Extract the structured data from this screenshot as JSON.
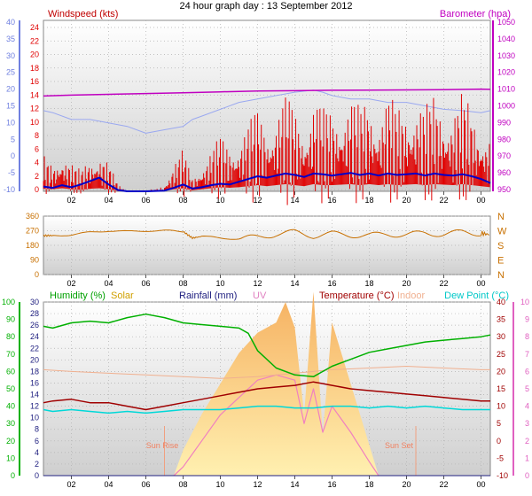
{
  "title": "24 hour graph day : 13 September 2012",
  "x_ticks": [
    "02",
    "04",
    "06",
    "08",
    "10",
    "12",
    "14",
    "16",
    "18",
    "20",
    "22",
    "00"
  ],
  "colors": {
    "windspeed": "#e00000",
    "wind_avg": "#0000c8",
    "wind_gust_avg": "#9aa8f0",
    "barometer": "#c000c0",
    "direction": "#c87000",
    "humidity": "#00b000",
    "solar": "#f0b000",
    "rainfall": "#202080",
    "uv": "#f080c0",
    "temperature": "#a00000",
    "indoor": "#f0b090",
    "dew_point": "#00d8d8",
    "left_axis_blue": "#7080e0",
    "left_axis_green": "#00b000",
    "right_axis_pink": "#e060c0"
  },
  "panels": {
    "wind": {
      "label_left": "Windspeed (kts)",
      "label_right": "Barometer (hpa)",
      "left_ticks_kts": [
        "24",
        "22",
        "20",
        "18",
        "16",
        "14",
        "12",
        "10",
        "8",
        "6",
        "4",
        "2",
        "0"
      ],
      "left_ticks_alt": [
        "40",
        "35",
        "30",
        "25",
        "20",
        "15",
        "10",
        "5",
        "0",
        "-5",
        "-10"
      ],
      "right_ticks": [
        "1050",
        "1040",
        "1030",
        "1020",
        "1010",
        "1000",
        "990",
        "980",
        "970",
        "960",
        "950"
      ]
    },
    "direction": {
      "left_ticks": [
        "360",
        "270",
        "180",
        "90",
        "0"
      ],
      "compass": [
        "N",
        "W",
        "S",
        "E",
        "N"
      ]
    },
    "weather": {
      "label_humidity": "Humidity (%)",
      "label_solar": "Solar",
      "label_rainfall": "Rainfall (mm)",
      "label_uv": "UV",
      "label_temperature": "Temperature (°C)",
      "label_indoor": "Indoor",
      "label_dewpoint": "Dew Point (°C)",
      "humidity_ticks": [
        "100",
        "90",
        "80",
        "70",
        "60",
        "50",
        "40",
        "30",
        "20",
        "10",
        "0"
      ],
      "rain_ticks": [
        "30",
        "28",
        "26",
        "24",
        "22",
        "20",
        "18",
        "16",
        "14",
        "12",
        "10",
        "8",
        "6",
        "4",
        "2",
        "0"
      ],
      "temp_ticks": [
        "40",
        "35",
        "30",
        "25",
        "20",
        "15",
        "10",
        "5",
        "0",
        "-5",
        "-10"
      ],
      "uv_ticks": [
        "10",
        "9",
        "8",
        "7",
        "6",
        "5",
        "4",
        "3",
        "2",
        "1",
        "0"
      ],
      "sunrise": "Sun Rise",
      "sunset": "Sun Set"
    }
  },
  "chart_data": [
    {
      "type": "line",
      "title": "24 hour graph day : 13 September 2012",
      "x_unit": "hour",
      "xlim": [
        0.5,
        24.5
      ],
      "ylabel": "Windspeed (kts)",
      "ylim": [
        0,
        25
      ],
      "y2label": "Barometer (hpa)",
      "y2lim": [
        948,
        1052
      ],
      "grid": true,
      "series": [
        {
          "name": "Windspeed (kts)",
          "axis": "left",
          "x": [
            0.5,
            1,
            1.5,
            2,
            2.5,
            3,
            3.5,
            4,
            4.5,
            5,
            6,
            7,
            7.5,
            8,
            8.5,
            9,
            9.5,
            10,
            10.5,
            11,
            11.5,
            12,
            12.5,
            13,
            13.5,
            14,
            14.5,
            15,
            15.5,
            16,
            16.5,
            17,
            17.5,
            18,
            18.5,
            19,
            19.5,
            20,
            20.5,
            21,
            21.5,
            22,
            22.5,
            23,
            23.5,
            24,
            24.5
          ],
          "values": [
            2.5,
            2,
            3,
            2,
            1.5,
            2.5,
            3,
            2,
            0.5,
            0,
            0,
            0.5,
            2,
            3,
            1,
            2,
            3,
            4,
            3.5,
            4,
            5,
            6,
            5,
            6,
            7,
            6,
            5,
            7,
            6,
            6,
            6.5,
            7,
            6,
            7,
            6,
            7,
            6,
            6.5,
            7,
            6,
            7,
            6.5,
            6,
            7,
            6,
            5,
            4
          ]
        },
        {
          "name": "",
          "axis": "left",
          "x": [
            0.5,
            1,
            1.5,
            2,
            2.5,
            3,
            3.5,
            4,
            4.5,
            5,
            6,
            7,
            7.5,
            8,
            8.5,
            9,
            9.5,
            10,
            10.5,
            11,
            11.5,
            12,
            12.5,
            13,
            13.5,
            14,
            14.5,
            15,
            15.5,
            16,
            16.5,
            17,
            17.5,
            18,
            18.5,
            19,
            19.5,
            20,
            20.5,
            21,
            21.5,
            22,
            22.5,
            23,
            23.5,
            24,
            24.5
          ],
          "values": [
            0.7,
            0.5,
            0.9,
            0.6,
            1,
            1.5,
            2,
            1,
            0.2,
            0,
            0,
            0.1,
            0.5,
            1,
            0.4,
            0.6,
            0.9,
            1.1,
            1,
            1.4,
            1.8,
            2.2,
            2,
            2.3,
            2.6,
            2.4,
            2.1,
            2.6,
            2.5,
            2.3,
            2.5,
            2.7,
            2.4,
            2.6,
            2.3,
            2.6,
            2.4,
            2.5,
            2.6,
            2.3,
            2.6,
            2.4,
            2.3,
            2.5,
            2.2,
            1.8,
            1.2
          ]
        },
        {
          "name": "",
          "axis": "left",
          "x": [
            0.5,
            1,
            2,
            3,
            4,
            5,
            6,
            7,
            8,
            8.5,
            9,
            10,
            11,
            12,
            13,
            14,
            15,
            15.5,
            16,
            17,
            18,
            19,
            20,
            21,
            22,
            23,
            24,
            24.5
          ],
          "values": [
            11.8,
            11.5,
            10.5,
            10.5,
            10,
            9.5,
            8.5,
            9,
            9.5,
            10.5,
            11,
            12,
            13,
            13.5,
            14,
            14.5,
            14.8,
            14.5,
            14,
            13.5,
            13.5,
            13,
            13,
            12.5,
            12,
            11.8,
            11.5,
            11.8
          ]
        },
        {
          "name": "Barometer (hpa)",
          "axis": "right",
          "x": [
            0.5,
            2,
            4,
            6,
            8,
            10,
            12,
            14,
            16,
            18,
            20,
            22,
            24,
            24.5
          ],
          "values": [
            1006,
            1006.5,
            1007,
            1007.5,
            1008,
            1008.5,
            1009,
            1009.2,
            1009.5,
            1009.6,
            1009.7,
            1009.8,
            1010.2,
            1010
          ]
        }
      ]
    },
    {
      "type": "line",
      "x_unit": "hour",
      "xlim": [
        0.5,
        24.5
      ],
      "ylabel": "",
      "ylim": [
        0,
        360
      ],
      "series": [
        {
          "name": "",
          "x": [
            0.5,
            1,
            2,
            3,
            4,
            5,
            6,
            7,
            8,
            8.5,
            9,
            10,
            11,
            12,
            13,
            14,
            15,
            16,
            17,
            18,
            19,
            20,
            21,
            22,
            23,
            24,
            24.5
          ],
          "values": [
            240,
            240,
            245,
            260,
            270,
            265,
            270,
            270,
            265,
            225,
            235,
            225,
            220,
            230,
            250,
            260,
            240,
            250,
            245,
            240,
            250,
            245,
            255,
            250,
            260,
            255,
            245
          ]
        }
      ]
    },
    {
      "type": "line",
      "x_unit": "hour",
      "xlim": [
        0.5,
        24.5
      ],
      "ylabel": "Humidity (%)",
      "ylim": [
        0,
        100
      ],
      "y2label": "Temperature (°C)",
      "y2lim": [
        -10,
        40
      ],
      "series": [
        {
          "name": "Humidity (%)",
          "axis": "left",
          "x": [
            0.5,
            1,
            2,
            3,
            4,
            5,
            6,
            7,
            8,
            9,
            10,
            11,
            11.5,
            12,
            13,
            14,
            15,
            15.5,
            16,
            17,
            18,
            19,
            20,
            21,
            22,
            23,
            24,
            24.5
          ],
          "values": [
            86,
            85,
            88,
            89,
            88,
            91,
            93,
            91,
            88,
            87,
            86,
            85,
            82,
            72,
            62,
            58,
            57,
            60,
            63,
            67,
            71,
            73,
            75,
            77,
            78,
            79,
            80,
            81
          ]
        },
        {
          "name": "Temperature (°C)",
          "axis": "right",
          "x": [
            0.5,
            1,
            2,
            3,
            4,
            5,
            6,
            7,
            8,
            9,
            10,
            11,
            12,
            13,
            14,
            15,
            15.5,
            16,
            17,
            18,
            19,
            20,
            21,
            22,
            23,
            24,
            24.5
          ],
          "values": [
            11,
            11.5,
            12,
            11,
            11,
            10,
            9,
            10,
            11,
            12,
            13,
            14,
            15,
            15.5,
            16,
            17,
            16.5,
            16,
            15,
            14.5,
            14,
            13.5,
            13,
            12.5,
            12,
            11.5,
            11.5
          ]
        },
        {
          "name": "Indoor",
          "axis": "right",
          "x": [
            0.5,
            2,
            4,
            6,
            8,
            10,
            12,
            14,
            16,
            18,
            20,
            22,
            24,
            24.5
          ],
          "values": [
            20.5,
            20,
            19.5,
            19,
            18.5,
            18,
            18.5,
            19.5,
            20.5,
            21,
            21.5,
            21,
            20.5,
            20.5
          ]
        },
        {
          "name": "Dew Point (°C)",
          "axis": "right",
          "x": [
            0.5,
            1,
            2,
            3,
            4,
            5,
            6,
            7,
            8,
            9,
            10,
            11,
            12,
            13,
            14,
            15,
            16,
            17,
            18,
            19,
            20,
            21,
            22,
            23,
            24,
            24.5
          ],
          "values": [
            9,
            8.5,
            9,
            8.5,
            8,
            8.5,
            8,
            8.5,
            9,
            9,
            9,
            9.5,
            10,
            10,
            9.5,
            9.5,
            10,
            10,
            9.5,
            10,
            9.5,
            10,
            9.5,
            9,
            9,
            9
          ]
        },
        {
          "name": "Solar",
          "axis": "left",
          "x": [
            7.5,
            8,
            9,
            10,
            11,
            12,
            13,
            13.5,
            14,
            14.5,
            15,
            15.5,
            16,
            17,
            18,
            18.5
          ],
          "values": [
            0,
            5,
            12,
            18,
            24,
            28,
            30,
            34,
            29,
            12,
            36,
            8,
            30,
            18,
            6,
            0
          ]
        },
        {
          "name": "UV",
          "axis": "uv",
          "ylim_uv": [
            0,
            10
          ],
          "x": [
            7.5,
            8,
            9,
            10,
            11,
            12,
            13,
            14,
            14.5,
            15,
            15.5,
            16,
            17,
            18,
            18.5
          ],
          "values": [
            0,
            0.5,
            2,
            3.5,
            4.5,
            5.5,
            5.8,
            5.5,
            3,
            5,
            2.5,
            4,
            2.5,
            0.8,
            0
          ]
        },
        {
          "name": "Rainfall (mm)",
          "axis": "rain",
          "x": [
            0.5,
            24.5
          ],
          "values": [
            0,
            0
          ]
        }
      ]
    }
  ]
}
